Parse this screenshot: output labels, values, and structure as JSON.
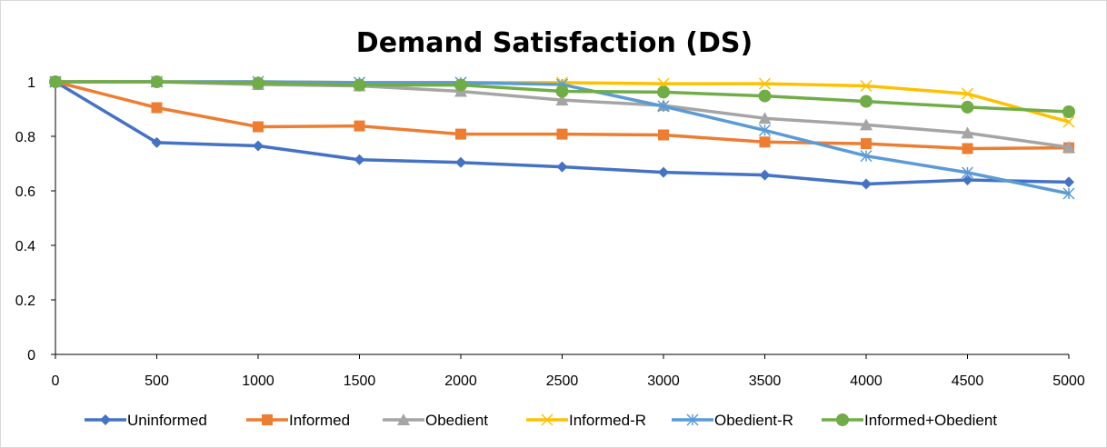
{
  "chart_data": {
    "type": "line",
    "title": "Demand Satisfaction (DS)",
    "xlabel": "",
    "ylabel": "",
    "x": [
      0,
      500,
      1000,
      1500,
      2000,
      2500,
      3000,
      3500,
      4000,
      4500,
      5000
    ],
    "x_tick_labels": [
      "0",
      "500",
      "1000",
      "1500",
      "2000",
      "2500",
      "3000",
      "3500",
      "4000",
      "4500",
      "5000"
    ],
    "ylim": [
      0,
      1
    ],
    "y_ticks": [
      0,
      0.2,
      0.4,
      0.6,
      0.8,
      1
    ],
    "y_tick_labels": [
      "0",
      "0.2",
      "0.4",
      "0.6",
      "0.8",
      "1"
    ],
    "grid": false,
    "legend_position": "bottom",
    "series": [
      {
        "name": "Uninformed",
        "color": "#4472C4",
        "marker": "diamond",
        "values": [
          1,
          0.777,
          0.765,
          0.714,
          0.704,
          0.688,
          0.668,
          0.658,
          0.625,
          0.64,
          0.632
        ]
      },
      {
        "name": "Informed",
        "color": "#ED7D31",
        "marker": "square",
        "values": [
          1,
          0.905,
          0.835,
          0.838,
          0.808,
          0.808,
          0.805,
          0.779,
          0.773,
          0.755,
          0.758
        ]
      },
      {
        "name": "Obedient",
        "color": "#A5A5A5",
        "marker": "triangle",
        "values": [
          1,
          1,
          0.99,
          0.985,
          0.965,
          0.933,
          0.913,
          0.866,
          0.842,
          0.812,
          0.76
        ]
      },
      {
        "name": "Informed-R",
        "color": "#FFC000",
        "marker": "x",
        "values": [
          1,
          1,
          1,
          0.997,
          0.997,
          0.997,
          0.993,
          0.993,
          0.985,
          0.956,
          0.853
        ]
      },
      {
        "name": "Obedient-R",
        "color": "#5B9BD5",
        "marker": "asterisk",
        "values": [
          1,
          1,
          1,
          0.997,
          0.997,
          0.99,
          0.91,
          0.822,
          0.728,
          0.667,
          0.59
        ]
      },
      {
        "name": "Informed+Obedient",
        "color": "#70AD47",
        "marker": "circle",
        "values": [
          1,
          1,
          0.995,
          0.988,
          0.988,
          0.965,
          0.962,
          0.948,
          0.928,
          0.907,
          0.89
        ]
      }
    ]
  }
}
